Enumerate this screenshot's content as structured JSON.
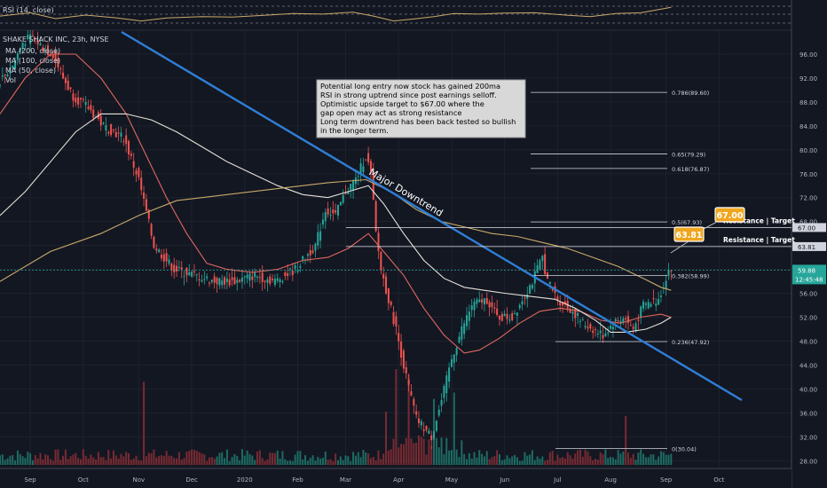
{
  "chart_data": {
    "type": "candlestick",
    "title": "SHAKE SHACK INC, 23h, NYSE",
    "rsi_label": "RSI (14, close)",
    "rsi_scale_label": "50.00",
    "indicator_labels": [
      "MA (200, close)",
      "MA (100, close)",
      "MA (50, close)",
      "Vol"
    ],
    "x_ticks": [
      "Sep",
      "Oct",
      "Nov",
      "Dec",
      "2020",
      "Feb",
      "Mar",
      "Apr",
      "May",
      "Jun",
      "Jul",
      "Aug",
      "Sep",
      "Oct"
    ],
    "y_ticks": [
      "96.00",
      "92.00",
      "88.00",
      "84.00",
      "80.00",
      "76.00",
      "72.00",
      "68.00",
      "64.00",
      "60.00",
      "56.00",
      "52.00",
      "48.00",
      "44.00",
      "40.00",
      "36.00",
      "32.00",
      "28.00"
    ],
    "ylim": [
      27,
      100
    ],
    "last_price": "59.88",
    "countdown": "12:45:48",
    "fib_levels": [
      {
        "label": "0.786(89.60)",
        "value": 89.6
      },
      {
        "label": "0.65(79.29)",
        "value": 79.29
      },
      {
        "label": "0.618(76.87)",
        "value": 76.87
      },
      {
        "label": "0.5(67.93)",
        "value": 67.93
      },
      {
        "label": "0.382(58.99)",
        "value": 58.99
      },
      {
        "label": "0.236(47.92)",
        "value": 47.92
      },
      {
        "label": "0(30.04)",
        "value": 30.04
      }
    ],
    "resistance": [
      {
        "label": "Resistance | Target",
        "value": 67.0,
        "value_label": "67.00",
        "badge": "67.00"
      },
      {
        "label": "Resistance | Target",
        "value": 63.81,
        "value_label": "63.81",
        "badge": "63.81"
      }
    ],
    "trendline_label": "Major Downtrend",
    "annotation_text": [
      "Potential long entry now stock has gained 200ma",
      "RSI in strong uptrend since post earnings selloff.",
      "Optimistic upside target to $67.00 where the",
      "gap open may act as strong resistance",
      "Long term downtrend has been back tested so bullish",
      "in the longer term."
    ],
    "price_path": [
      [
        0,
        91
      ],
      [
        6,
        94
      ],
      [
        10,
        98
      ],
      [
        14,
        99
      ],
      [
        18,
        97
      ],
      [
        22,
        96
      ],
      [
        26,
        92
      ],
      [
        30,
        89
      ],
      [
        36,
        87
      ],
      [
        42,
        84
      ],
      [
        50,
        82
      ],
      [
        56,
        75
      ],
      [
        62,
        64
      ],
      [
        70,
        60
      ],
      [
        78,
        59
      ],
      [
        86,
        58
      ],
      [
        94,
        58
      ],
      [
        102,
        59
      ],
      [
        110,
        58
      ],
      [
        118,
        60
      ],
      [
        126,
        64
      ],
      [
        130,
        70
      ],
      [
        134,
        69
      ],
      [
        138,
        73
      ],
      [
        142,
        75
      ],
      [
        146,
        79
      ],
      [
        148,
        76
      ],
      [
        150,
        66
      ],
      [
        152,
        60
      ],
      [
        158,
        50
      ],
      [
        162,
        42
      ],
      [
        166,
        35
      ],
      [
        170,
        33
      ],
      [
        172,
        32
      ],
      [
        176,
        38
      ],
      [
        180,
        45
      ],
      [
        184,
        50
      ],
      [
        188,
        54
      ],
      [
        194,
        55
      ],
      [
        198,
        52
      ],
      [
        204,
        52
      ],
      [
        208,
        55
      ],
      [
        212,
        58
      ],
      [
        216,
        62
      ],
      [
        218,
        58
      ],
      [
        222,
        55
      ],
      [
        228,
        53
      ],
      [
        232,
        51
      ],
      [
        236,
        50
      ],
      [
        240,
        49
      ],
      [
        244,
        51
      ],
      [
        248,
        52
      ],
      [
        252,
        50
      ],
      [
        256,
        54
      ],
      [
        262,
        55
      ],
      [
        266,
        59.9
      ]
    ],
    "ma_series": [
      {
        "name": "MA (50, close)",
        "color": "#e0685f",
        "values": [
          [
            0,
            86
          ],
          [
            10,
            92
          ],
          [
            20,
            96
          ],
          [
            30,
            96
          ],
          [
            40,
            92
          ],
          [
            50,
            86
          ],
          [
            58,
            79
          ],
          [
            66,
            72
          ],
          [
            74,
            66
          ],
          [
            82,
            61
          ],
          [
            90,
            60
          ],
          [
            100,
            59.5
          ],
          [
            110,
            60
          ],
          [
            120,
            61.5
          ],
          [
            130,
            62
          ],
          [
            138,
            63.5
          ],
          [
            146,
            66
          ],
          [
            152,
            63
          ],
          [
            160,
            59
          ],
          [
            168,
            53.5
          ],
          [
            176,
            49
          ],
          [
            184,
            46
          ],
          [
            190,
            46.5
          ],
          [
            198,
            48.5
          ],
          [
            206,
            51
          ],
          [
            214,
            53
          ],
          [
            222,
            53.5
          ],
          [
            230,
            53
          ],
          [
            238,
            51.5
          ],
          [
            246,
            51
          ],
          [
            254,
            52
          ],
          [
            262,
            52.5
          ],
          [
            266,
            52
          ]
        ]
      },
      {
        "name": "MA (100, close)",
        "color": "#e6e2da",
        "values": [
          [
            0,
            69
          ],
          [
            10,
            73
          ],
          [
            20,
            78
          ],
          [
            30,
            83
          ],
          [
            40,
            86
          ],
          [
            50,
            86
          ],
          [
            60,
            85
          ],
          [
            70,
            83
          ],
          [
            80,
            80.5
          ],
          [
            90,
            78
          ],
          [
            100,
            76
          ],
          [
            110,
            74
          ],
          [
            120,
            72.5
          ],
          [
            130,
            72
          ],
          [
            138,
            73
          ],
          [
            146,
            74
          ],
          [
            152,
            71
          ],
          [
            160,
            66
          ],
          [
            168,
            61.5
          ],
          [
            176,
            58.5
          ],
          [
            184,
            57
          ],
          [
            192,
            56.5
          ],
          [
            200,
            56
          ],
          [
            210,
            55.5
          ],
          [
            220,
            55
          ],
          [
            228,
            53.5
          ],
          [
            236,
            51.5
          ],
          [
            242,
            49.5
          ],
          [
            248,
            49.5
          ],
          [
            256,
            50
          ],
          [
            262,
            51
          ],
          [
            266,
            52
          ]
        ]
      },
      {
        "name": "MA (200, close)",
        "color": "#c9a96a",
        "values": [
          [
            0,
            58
          ],
          [
            20,
            63
          ],
          [
            40,
            66
          ],
          [
            55,
            69
          ],
          [
            70,
            71.5
          ],
          [
            90,
            72.5
          ],
          [
            110,
            73.5
          ],
          [
            130,
            74.5
          ],
          [
            145,
            75
          ],
          [
            155,
            73
          ],
          [
            165,
            70
          ],
          [
            175,
            68
          ],
          [
            185,
            67
          ],
          [
            195,
            66
          ],
          [
            205,
            65.5
          ],
          [
            215,
            64.5
          ],
          [
            225,
            63.5
          ],
          [
            235,
            62
          ],
          [
            245,
            60.5
          ],
          [
            255,
            58.5
          ],
          [
            262,
            57
          ],
          [
            266,
            56.5
          ]
        ]
      }
    ],
    "volume_spikes": [
      [
        57,
        0.78
      ],
      [
        153,
        0.5
      ],
      [
        157,
        0.9
      ],
      [
        162,
        0.85
      ],
      [
        172,
        0.62
      ],
      [
        180,
        0.68
      ],
      [
        248,
        0.46
      ]
    ],
    "rsi": [
      [
        0,
        0.45
      ],
      [
        12,
        0.62
      ],
      [
        22,
        0.32
      ],
      [
        34,
        0.5
      ],
      [
        46,
        0.36
      ],
      [
        56,
        0.2
      ],
      [
        66,
        0.35
      ],
      [
        80,
        0.42
      ],
      [
        92,
        0.4
      ],
      [
        104,
        0.48
      ],
      [
        116,
        0.58
      ],
      [
        128,
        0.55
      ],
      [
        140,
        0.65
      ],
      [
        148,
        0.45
      ],
      [
        156,
        0.2
      ],
      [
        164,
        0.3
      ],
      [
        172,
        0.42
      ],
      [
        180,
        0.58
      ],
      [
        190,
        0.55
      ],
      [
        200,
        0.6
      ],
      [
        212,
        0.62
      ],
      [
        224,
        0.5
      ],
      [
        234,
        0.42
      ],
      [
        244,
        0.58
      ],
      [
        254,
        0.62
      ],
      [
        266,
        0.9
      ]
    ],
    "grid": true
  }
}
